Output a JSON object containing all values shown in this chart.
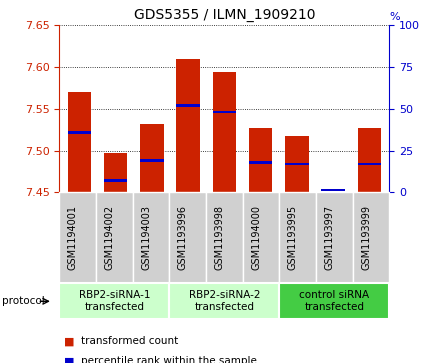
{
  "title": "GDS5355 / ILMN_1909210",
  "samples": [
    "GSM1194001",
    "GSM1194002",
    "GSM1194003",
    "GSM1193996",
    "GSM1193998",
    "GSM1194000",
    "GSM1193995",
    "GSM1193997",
    "GSM1193999"
  ],
  "red_values": [
    7.57,
    7.497,
    7.532,
    7.61,
    7.594,
    7.527,
    7.517,
    7.45,
    7.527
  ],
  "blue_values": [
    7.522,
    7.464,
    7.488,
    7.554,
    7.546,
    7.486,
    7.484,
    7.453,
    7.484
  ],
  "base": 7.45,
  "ylim": [
    7.45,
    7.65
  ],
  "yticks": [
    7.45,
    7.5,
    7.55,
    7.6,
    7.65
  ],
  "right_yticks": [
    0,
    25,
    50,
    75,
    100
  ],
  "right_ylim": [
    0,
    100
  ],
  "bar_width": 0.65,
  "bar_color": "#cc2200",
  "blue_color": "#0000cc",
  "group_labels": [
    "RBP2-siRNA-1\ntransfected",
    "RBP2-siRNA-2\ntransfected",
    "control siRNA\ntransfected"
  ],
  "group_ranges": [
    [
      0,
      2
    ],
    [
      3,
      5
    ],
    [
      6,
      8
    ]
  ],
  "group_colors": [
    "#ccffcc",
    "#ccffcc",
    "#44cc44"
  ],
  "sample_box_color": "#d0d0d0",
  "protocol_label": "protocol",
  "legend_labels": [
    "transformed count",
    "percentile rank within the sample"
  ],
  "tick_label_fontsize": 7,
  "title_fontsize": 10,
  "axis_color_left": "#cc2200",
  "axis_color_right": "#0000cc",
  "plot_bg": "#ffffff"
}
